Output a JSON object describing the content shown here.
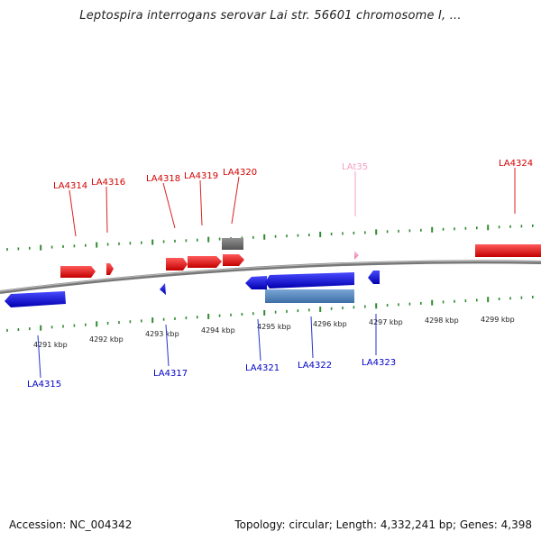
{
  "title": "Leptospira interrogans serovar Lai str. 56601 chromosome I, ...",
  "footer": {
    "accession": "Accession: NC_004342",
    "topology": "Topology: circular; Length: 4,332,241 bp; Genes: 4,398"
  },
  "colors": {
    "forward": "#e41a1c",
    "reverse": "#1f1fe6",
    "rna": "#f4a6c6",
    "other": "#6e6e6e",
    "tick": "#2e8b2e",
    "backbone": "#7a7a7a"
  },
  "axis_labels": [
    "4291 kbp",
    "4292 kbp",
    "4293 kbp",
    "4294 kbp",
    "4295 kbp",
    "4296 kbp",
    "4297 kbp",
    "4298 kbp",
    "4299 kbp"
  ],
  "forward_genes": [
    "LA4314",
    "LA4316",
    "LA4318",
    "LA4319",
    "LA4320",
    "LAt35",
    "LA4324"
  ],
  "reverse_genes": [
    "LA4315",
    "LA4317",
    "LA4321",
    "LA4322",
    "LA4323"
  ]
}
